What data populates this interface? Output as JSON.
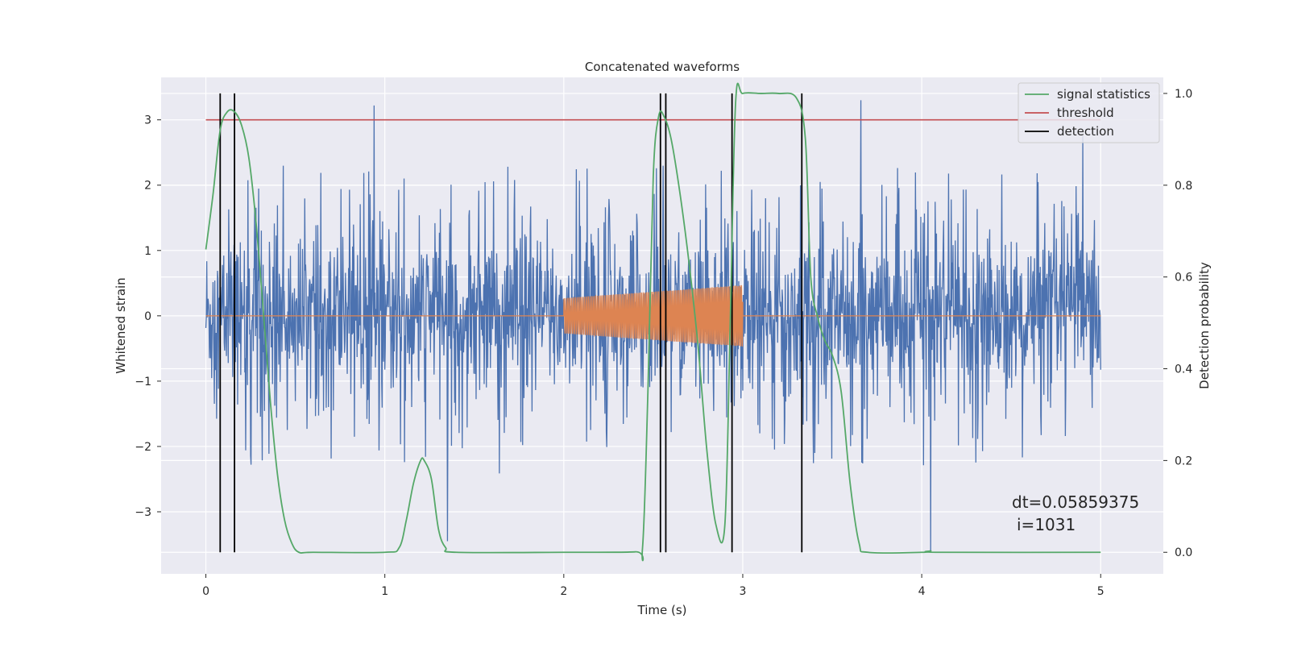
{
  "chart_data": {
    "type": "line",
    "title": "Concatenated waveforms",
    "xlabel": "Time (s)",
    "ylabel": "Whitened strain",
    "y2label": "Detection probability",
    "xlim": [
      -0.25,
      5.35
    ],
    "ylim": [
      -3.95,
      3.65
    ],
    "y2lim": [
      -0.047,
      1.035
    ],
    "xticks": [
      0,
      1,
      2,
      3,
      4,
      5
    ],
    "xtick_labels": [
      "0",
      "1",
      "2",
      "3",
      "4",
      "5"
    ],
    "yticks": [
      3,
      2,
      1,
      0,
      -1,
      -2,
      -3
    ],
    "ytick_labels": [
      "3",
      "2",
      "1",
      "0",
      "−1",
      "−2",
      "−3"
    ],
    "y2ticks": [
      1.0,
      0.8,
      0.6,
      0.4,
      0.2,
      0.0
    ],
    "y2tick_labels": [
      "1.0",
      "0.8",
      "0.6",
      "0.4",
      "0.2",
      "0.0"
    ],
    "grid": true,
    "legend_position": "top-right",
    "legend": [
      {
        "label": "signal statistics",
        "color": "#55a868"
      },
      {
        "label": "threshold",
        "color": "#c44e52"
      },
      {
        "label": "detection",
        "color": "#000000"
      }
    ],
    "series": [
      {
        "kind": "noise",
        "color": "#4c72b0",
        "x_range": [
          0,
          5
        ],
        "samples": 2000,
        "baseline_amplitude": 0.6,
        "typical_peak_range": [
          -2.0,
          2.4
        ],
        "max_peaks": [
          [
            0.94,
            3.22
          ],
          [
            1.35,
            -3.45
          ],
          [
            3.66,
            3.3
          ],
          [
            4.05,
            -3.6
          ],
          [
            4.9,
            2.75
          ]
        ]
      },
      {
        "kind": "chirp",
        "color": "#dd8452",
        "x_range": [
          2,
          3
        ],
        "amplitude_range": [
          0.27,
          0.47
        ]
      },
      {
        "name": "signal statistics",
        "axis": "right",
        "color": "#55a868",
        "x": [
          0,
          0.04,
          0.08,
          0.12,
          0.16,
          0.2,
          0.24,
          0.28,
          0.32,
          0.36,
          0.4,
          0.44,
          0.48,
          0.52,
          0.6,
          1.0,
          1.08,
          1.12,
          1.16,
          1.2,
          1.22,
          1.26,
          1.3,
          1.34,
          1.4,
          2.0,
          2.4,
          2.44,
          2.47,
          2.5,
          2.53,
          2.56,
          2.6,
          2.65,
          2.7,
          2.75,
          2.8,
          2.85,
          2.9,
          2.93,
          2.96,
          3.0,
          3.1,
          3.2,
          3.3,
          3.35,
          3.38,
          3.42,
          3.46,
          3.5,
          3.55,
          3.6,
          3.65,
          3.7,
          4.0,
          4.05,
          4.1,
          5.0
        ],
        "y": [
          0.66,
          0.78,
          0.92,
          0.96,
          0.96,
          0.93,
          0.86,
          0.72,
          0.53,
          0.33,
          0.17,
          0.07,
          0.02,
          0.0,
          0.0,
          0.0,
          0.01,
          0.07,
          0.15,
          0.2,
          0.2,
          0.16,
          0.05,
          0.01,
          0.0,
          0.0,
          0.001,
          0.01,
          0.35,
          0.82,
          0.95,
          0.95,
          0.9,
          0.78,
          0.63,
          0.45,
          0.22,
          0.06,
          0.06,
          0.5,
          0.98,
          1.0,
          1.0,
          1.0,
          0.99,
          0.9,
          0.6,
          0.51,
          0.46,
          0.43,
          0.35,
          0.15,
          0.02,
          0.0,
          0.0,
          0.003,
          0.0,
          0.0
        ]
      },
      {
        "name": "threshold",
        "axis": "left",
        "color": "#c44e52",
        "x": [
          0,
          5
        ],
        "y": [
          3,
          3
        ]
      }
    ],
    "detections": [
      0.08,
      0.16,
      2.54,
      2.57,
      2.94,
      3.33
    ],
    "annotation": {
      "line1": "dt=0.05859375",
      "line2": "i=1031",
      "x": 4.5,
      "y": -3.0
    }
  }
}
